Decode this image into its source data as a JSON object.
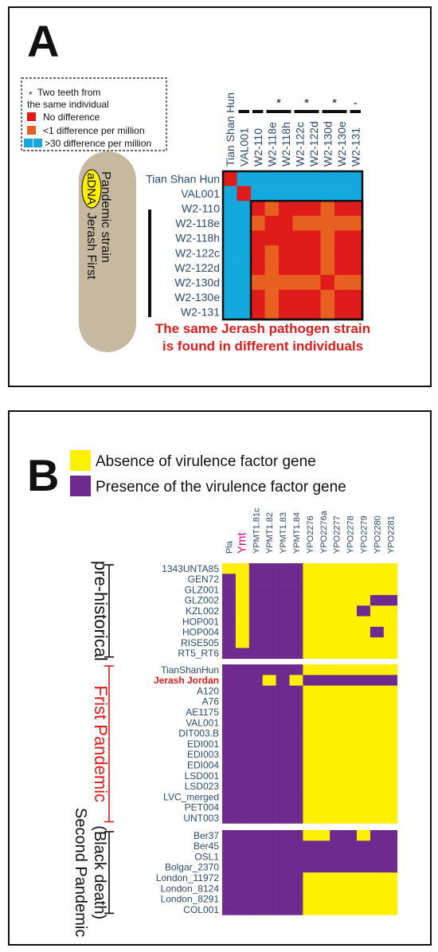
{
  "colors": {
    "red": "#e01b1b",
    "orange": "#e8601f",
    "blue": "#13a9dd",
    "yellow": "#ffef00",
    "purple": "#6f2a90",
    "label_blue": "#2b4a6f",
    "beige": "#c7b8a0",
    "caption_red": "#e01b1b",
    "magenta": "#e4007c"
  },
  "panel_a": {
    "letter": "A",
    "legend": {
      "star": "*",
      "star_text_1": "Two teeth from",
      "star_text_2": "the same individual",
      "no_diff": "No difference",
      "less1": "<1 difference per million",
      "gt30": ">30 difference per million"
    },
    "columns": [
      "Tian Shan Hun",
      "VAL001",
      "W2-110",
      "W2-118e",
      "W2-118h",
      "W2-122c",
      "W2-122d",
      "W2-130d",
      "W2-130e",
      "W2-131"
    ],
    "rows": [
      "Tian Shan Hun",
      "VAL001",
      "W2-110",
      "W2-118e",
      "W2-118h",
      "W2-122c",
      "W2-122d",
      "W2-130d",
      "W2-130e",
      "W2-131"
    ],
    "matrix": [
      [
        "R",
        "B",
        "B",
        "B",
        "B",
        "B",
        "B",
        "B",
        "B",
        "B"
      ],
      [
        "B",
        "R",
        "B",
        "B",
        "B",
        "B",
        "B",
        "B",
        "B",
        "B"
      ],
      [
        "B",
        "B",
        "R",
        "O",
        "R",
        "R",
        "R",
        "O",
        "R",
        "R"
      ],
      [
        "B",
        "B",
        "O",
        "R",
        "R",
        "O",
        "O",
        "O",
        "O",
        "O"
      ],
      [
        "B",
        "B",
        "R",
        "R",
        "R",
        "R",
        "R",
        "O",
        "R",
        "R"
      ],
      [
        "B",
        "B",
        "R",
        "O",
        "R",
        "R",
        "R",
        "O",
        "R",
        "R"
      ],
      [
        "B",
        "B",
        "R",
        "O",
        "R",
        "R",
        "R",
        "O",
        "R",
        "R"
      ],
      [
        "B",
        "B",
        "O",
        "O",
        "O",
        "O",
        "O",
        "R",
        "O",
        "O"
      ],
      [
        "B",
        "B",
        "R",
        "O",
        "R",
        "R",
        "R",
        "O",
        "R",
        "R"
      ],
      [
        "B",
        "B",
        "R",
        "O",
        "R",
        "R",
        "R",
        "O",
        "R",
        "R"
      ]
    ],
    "pair_star": "*",
    "pair_dash": "-",
    "adna": "aDNA",
    "side_text_1": "Jerash First",
    "side_text_2": "Pandemic strain",
    "caption_1": "The same  Jerash pathogen strain",
    "caption_2": "is found in different individuals"
  },
  "panel_b": {
    "letter": "B",
    "legend_absent": "Absence of virulence factor gene",
    "legend_present": "Presence of the virulence factor gene",
    "columns": [
      "Pla",
      "Ymt",
      "YPMT1.81c",
      "YPMT1.82",
      "YPMT1.83",
      "YPMT1.84",
      "YPO2276",
      "YPO2276a",
      "YPO2277",
      "YPO2278",
      "YPO2279",
      "YPO2280",
      "YPO2281"
    ],
    "highlight_column": "Ymt",
    "groups": [
      {
        "label": "pre-historical",
        "label_2": "",
        "rows": [
          {
            "name": "1343UNTA85",
            "cells": "YYPPPPYYYYYYY"
          },
          {
            "name": "GEN72",
            "cells": "PYPPPPYYYYYYY"
          },
          {
            "name": "GLZ001",
            "cells": "PYPPPPYYYYYYY"
          },
          {
            "name": "GLZ002",
            "cells": "PYPPPPYYYYYPP"
          },
          {
            "name": "KZL002",
            "cells": "PYPPPPYYYYPYY"
          },
          {
            "name": "HOP001",
            "cells": "PYPPPPYYYYYYY"
          },
          {
            "name": "HOP004",
            "cells": "PYPPPPYYYYYPY"
          },
          {
            "name": "RISE505",
            "cells": "PYPPPPYYYYYYY"
          },
          {
            "name": "RT5_RT6",
            "cells": "PPPPPPYYYYYYY"
          }
        ]
      },
      {
        "label": "Frist Pandemic",
        "label_2": "",
        "rows": [
          {
            "name": "TianShanHun",
            "cells": "PPPPPPYYYYYYY"
          },
          {
            "name": "Jerash Jordan",
            "cells": "PPPYPYPPPPPPP"
          },
          {
            "name": "A120",
            "cells": "PPPPPPYYYYYYY"
          },
          {
            "name": "A76",
            "cells": "PPPPPPYYYYYYY"
          },
          {
            "name": "AE1175",
            "cells": "PPPPPPYYYYYYY"
          },
          {
            "name": "VAL001",
            "cells": "PPPPPPYYYYYYY"
          },
          {
            "name": "DIT003.B",
            "cells": "PPPPPPYYYYYYY"
          },
          {
            "name": "EDI001",
            "cells": "PPPPPPYYYYYYY"
          },
          {
            "name": "EDI003",
            "cells": "PPPPPPYYYYYYY"
          },
          {
            "name": "EDI004",
            "cells": "PPPPPPYYYYYYY"
          },
          {
            "name": "LSD001",
            "cells": "PPPPPPYYYYYYY"
          },
          {
            "name": "LSD023",
            "cells": "PPPPPPYYYYYYY"
          },
          {
            "name": "LVC_merged",
            "cells": "PPPPPPYYYYYYY"
          },
          {
            "name": "PET004",
            "cells": "PPPPPPYYYYYYY"
          },
          {
            "name": "UNT003",
            "cells": "PPPPPPYYYYYYY"
          }
        ]
      },
      {
        "label": "Second Pandemic",
        "label_2": "(Black death)",
        "rows": [
          {
            "name": "Ber37",
            "cells": "PPPPPPYYPPYPP"
          },
          {
            "name": "Ber45",
            "cells": "PPPPPPPPPPPPP"
          },
          {
            "name": "OSL1",
            "cells": "PPPPPPPPPPPPP"
          },
          {
            "name": "Bolgar_2370",
            "cells": "PPPPPPPPPPPPP"
          },
          {
            "name": "London_11972",
            "cells": "PPPPPPYYYYYYY"
          },
          {
            "name": "London_8124",
            "cells": "PPPPPPYYYYYYY"
          },
          {
            "name": "London_8291",
            "cells": "PPPPPPYYYYYYY"
          },
          {
            "name": "COL001",
            "cells": "PPPPPPYYYYYYY"
          }
        ]
      }
    ]
  }
}
